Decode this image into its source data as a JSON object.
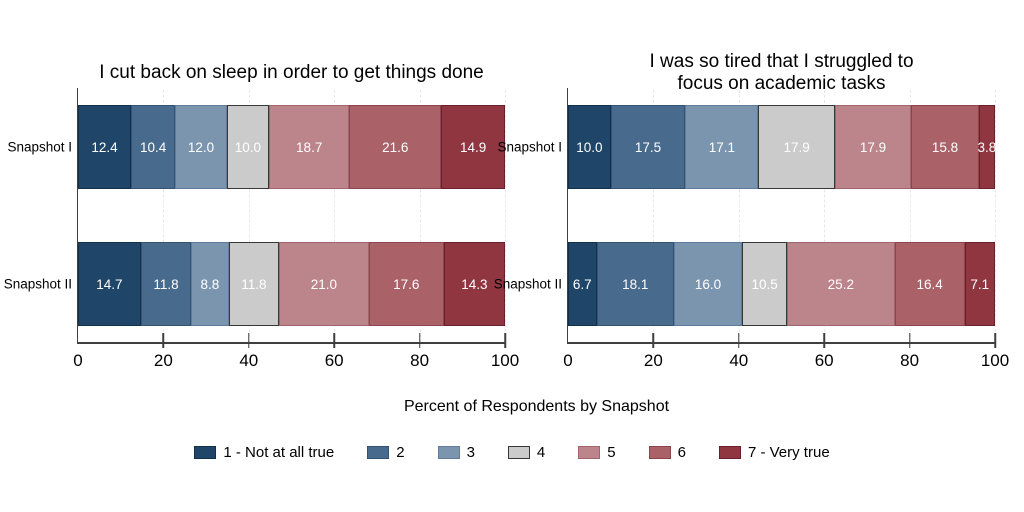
{
  "x_axis_label": "Percent of Respondents by Snapshot",
  "legend": [
    "1 - Not at all true",
    "2",
    "3",
    "4",
    "5",
    "6",
    "7 - Very true"
  ],
  "colors": {
    "fills": [
      "#1F4668",
      "#486A8D",
      "#7C95AF",
      "#CBCBCB",
      "#BC848B",
      "#AA6168",
      "#8F3641"
    ],
    "borders": [
      "#12304A",
      "#345371",
      "#607C9A",
      "#373737",
      "#A3646C",
      "#8B454D",
      "#6B1F2A"
    ],
    "gridline": "#E7E7E7",
    "axis": "#3F3F3F",
    "bar_label": "#FFFFFF",
    "text": "#000000"
  },
  "chart_data": [
    {
      "type": "bar",
      "stacked": true,
      "orientation": "horizontal",
      "title": "I cut back on sleep in order to get things done",
      "categories": [
        "Snapshot I",
        "Snapshot II"
      ],
      "xlabel": "Percent of Respondents by Snapshot",
      "xlim": [
        0,
        100
      ],
      "xticks": [
        0,
        20,
        40,
        60,
        80,
        100
      ],
      "grid": "vertical-dashed",
      "legend_position": "bottom",
      "series": [
        {
          "name": "1 - Not at all true",
          "values": [
            12.4,
            14.7
          ]
        },
        {
          "name": "2",
          "values": [
            10.4,
            11.8
          ]
        },
        {
          "name": "3",
          "values": [
            12.0,
            8.8
          ]
        },
        {
          "name": "4",
          "values": [
            10.0,
            11.8
          ]
        },
        {
          "name": "5",
          "values": [
            18.7,
            21.0
          ]
        },
        {
          "name": "6",
          "values": [
            21.6,
            17.6
          ]
        },
        {
          "name": "7 - Very true",
          "values": [
            14.9,
            14.3
          ]
        }
      ]
    },
    {
      "type": "bar",
      "stacked": true,
      "orientation": "horizontal",
      "title": "I was so tired that I struggled to\nfocus on academic tasks",
      "categories": [
        "Snapshot I",
        "Snapshot II"
      ],
      "xlabel": "Percent of Respondents by Snapshot",
      "xlim": [
        0,
        100
      ],
      "xticks": [
        0,
        20,
        40,
        60,
        80,
        100
      ],
      "grid": "vertical-dashed",
      "legend_position": "bottom",
      "series": [
        {
          "name": "1 - Not at all true",
          "values": [
            10.0,
            6.7
          ]
        },
        {
          "name": "2",
          "values": [
            17.5,
            18.1
          ]
        },
        {
          "name": "3",
          "values": [
            17.1,
            16.0
          ]
        },
        {
          "name": "4",
          "values": [
            17.9,
            10.5
          ]
        },
        {
          "name": "5",
          "values": [
            17.9,
            25.2
          ]
        },
        {
          "name": "6",
          "values": [
            15.8,
            16.4
          ]
        },
        {
          "name": "7 - Very true",
          "values": [
            3.8,
            7.1
          ]
        }
      ]
    }
  ]
}
